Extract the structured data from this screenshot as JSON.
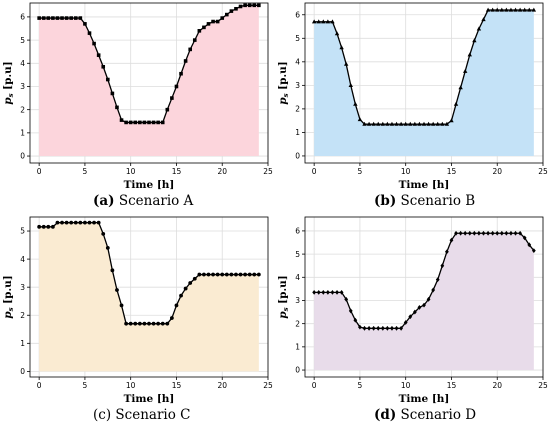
{
  "captions": [
    {
      "letter": "(a)",
      "text": " Scenario A"
    },
    {
      "letter": "(b)",
      "text": " Scenario B"
    },
    {
      "letter": "(c)",
      "text": " Scenario C"
    },
    {
      "letter": "(d)",
      "text": " Scenario D"
    }
  ],
  "chart_data": [
    {
      "type": "line",
      "xlabel": "Time [h]",
      "ylabel": "p_s [p.u]",
      "xlim": [
        -1,
        25
      ],
      "ylim": [
        -0.3,
        6.6
      ],
      "xticks": [
        0,
        5,
        10,
        15,
        20,
        25
      ],
      "yticks": [
        0,
        1,
        2,
        3,
        4,
        5,
        6
      ],
      "grid": true,
      "fill": "#fcd5dc",
      "marker": "square",
      "x": [
        0,
        0.5,
        1,
        1.5,
        2,
        2.5,
        3,
        3.5,
        4,
        4.5,
        5,
        5.5,
        6,
        6.5,
        7,
        7.5,
        8,
        8.5,
        9,
        9.5,
        10,
        10.5,
        11,
        11.5,
        12,
        12.5,
        13,
        13.5,
        14,
        14.5,
        15,
        15.5,
        16,
        16.5,
        17,
        17.5,
        18,
        18.5,
        19,
        19.5,
        20,
        20.5,
        21,
        21.5,
        22,
        22.5,
        23,
        23.5,
        24
      ],
      "values": [
        5.95,
        5.95,
        5.95,
        5.95,
        5.95,
        5.95,
        5.95,
        5.95,
        5.95,
        5.95,
        5.7,
        5.3,
        4.85,
        4.35,
        3.85,
        3.3,
        2.7,
        2.1,
        1.55,
        1.45,
        1.45,
        1.45,
        1.45,
        1.45,
        1.45,
        1.45,
        1.45,
        1.45,
        2.0,
        2.5,
        3.0,
        3.55,
        4.1,
        4.6,
        5.0,
        5.4,
        5.55,
        5.7,
        5.8,
        5.8,
        5.95,
        6.1,
        6.25,
        6.35,
        6.45,
        6.5,
        6.5,
        6.5,
        6.5
      ]
    },
    {
      "type": "line",
      "xlabel": "Time [h]",
      "ylabel": "p_s [p.u]",
      "xlim": [
        -1,
        25
      ],
      "ylim": [
        -0.3,
        6.5
      ],
      "xticks": [
        0,
        5,
        10,
        15,
        20,
        25
      ],
      "yticks": [
        0,
        1,
        2,
        3,
        4,
        5,
        6
      ],
      "grid": true,
      "fill": "#c4e2f7",
      "marker": "triangle",
      "x": [
        0,
        0.5,
        1,
        1.5,
        2,
        2.5,
        3,
        3.5,
        4,
        4.5,
        5,
        5.5,
        6,
        6.5,
        7,
        7.5,
        8,
        8.5,
        9,
        9.5,
        10,
        10.5,
        11,
        11.5,
        12,
        12.5,
        13,
        13.5,
        14,
        14.5,
        15,
        15.5,
        16,
        16.5,
        17,
        17.5,
        18,
        18.5,
        19,
        19.5,
        20,
        20.5,
        21,
        21.5,
        22,
        22.5,
        23,
        23.5,
        24
      ],
      "values": [
        5.7,
        5.7,
        5.7,
        5.7,
        5.7,
        5.2,
        4.6,
        3.9,
        3.0,
        2.2,
        1.55,
        1.35,
        1.35,
        1.35,
        1.35,
        1.35,
        1.35,
        1.35,
        1.35,
        1.35,
        1.35,
        1.35,
        1.35,
        1.35,
        1.35,
        1.35,
        1.35,
        1.35,
        1.35,
        1.35,
        1.5,
        2.2,
        2.9,
        3.6,
        4.3,
        4.9,
        5.4,
        5.8,
        6.2,
        6.2,
        6.2,
        6.2,
        6.2,
        6.2,
        6.2,
        6.2,
        6.2,
        6.2,
        6.2
      ]
    },
    {
      "type": "line",
      "xlabel": "Time [h]",
      "ylabel": "p_s [p.u]",
      "xlim": [
        -1,
        25
      ],
      "ylim": [
        -0.2,
        5.5
      ],
      "xticks": [
        0,
        5,
        10,
        15,
        20,
        25
      ],
      "yticks": [
        0,
        1,
        2,
        3,
        4,
        5
      ],
      "grid": true,
      "fill": "#faebd2",
      "marker": "circle",
      "x": [
        0,
        0.5,
        1,
        1.5,
        2,
        2.5,
        3,
        3.5,
        4,
        4.5,
        5,
        5.5,
        6,
        6.5,
        7,
        7.5,
        8,
        8.5,
        9,
        9.5,
        10,
        10.5,
        11,
        11.5,
        12,
        12.5,
        13,
        13.5,
        14,
        14.5,
        15,
        15.5,
        16,
        16.5,
        17,
        17.5,
        18,
        18.5,
        19,
        19.5,
        20,
        20.5,
        21,
        21.5,
        22,
        22.5,
        23,
        23.5,
        24
      ],
      "values": [
        5.15,
        5.15,
        5.15,
        5.15,
        5.3,
        5.3,
        5.3,
        5.3,
        5.3,
        5.3,
        5.3,
        5.3,
        5.3,
        5.3,
        4.9,
        4.4,
        3.6,
        2.9,
        2.35,
        1.7,
        1.7,
        1.7,
        1.7,
        1.7,
        1.7,
        1.7,
        1.7,
        1.7,
        1.7,
        1.9,
        2.35,
        2.7,
        2.95,
        3.15,
        3.3,
        3.45,
        3.45,
        3.45,
        3.45,
        3.45,
        3.45,
        3.45,
        3.45,
        3.45,
        3.45,
        3.45,
        3.45,
        3.45,
        3.45
      ]
    },
    {
      "type": "line",
      "xlabel": "Time [h]",
      "ylabel": "p_s [p.u]",
      "xlim": [
        -1,
        25
      ],
      "ylim": [
        -0.3,
        6.6
      ],
      "xticks": [
        0,
        5,
        10,
        15,
        20,
        25
      ],
      "yticks": [
        0,
        1,
        2,
        3,
        4,
        5,
        6
      ],
      "grid": true,
      "fill": "#e8dcea",
      "marker": "diamond",
      "x": [
        0,
        0.5,
        1,
        1.5,
        2,
        2.5,
        3,
        3.5,
        4,
        4.5,
        5,
        5.5,
        6,
        6.5,
        7,
        7.5,
        8,
        8.5,
        9,
        9.5,
        10,
        10.5,
        11,
        11.5,
        12,
        12.5,
        13,
        13.5,
        14,
        14.5,
        15,
        15.5,
        16,
        16.5,
        17,
        17.5,
        18,
        18.5,
        19,
        19.5,
        20,
        20.5,
        21,
        21.5,
        22,
        22.5,
        23,
        23.5,
        24
      ],
      "values": [
        3.35,
        3.35,
        3.35,
        3.35,
        3.35,
        3.35,
        3.35,
        3.05,
        2.55,
        2.15,
        1.85,
        1.8,
        1.8,
        1.8,
        1.8,
        1.8,
        1.8,
        1.8,
        1.8,
        1.8,
        2.05,
        2.3,
        2.5,
        2.7,
        2.8,
        3.05,
        3.45,
        3.9,
        4.5,
        5.1,
        5.6,
        5.9,
        5.9,
        5.9,
        5.9,
        5.9,
        5.9,
        5.9,
        5.9,
        5.9,
        5.9,
        5.9,
        5.9,
        5.9,
        5.9,
        5.9,
        5.7,
        5.4,
        5.15
      ]
    }
  ]
}
